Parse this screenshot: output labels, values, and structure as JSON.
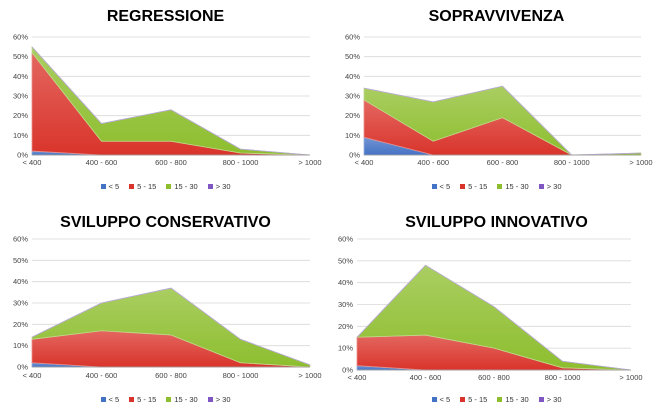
{
  "chart_data": [
    {
      "type": "area",
      "title": "REGRESSIONE",
      "categories": [
        "< 400",
        "400 - 600",
        "600 - 800",
        "800 - 1000",
        "> 1000"
      ],
      "ylim": [
        0,
        60
      ],
      "yticks": [
        "0%",
        "10%",
        "20%",
        "30%",
        "40%",
        "50%",
        "60%"
      ],
      "stacked": true,
      "series": [
        {
          "name": "< 5",
          "color": "#4472C4",
          "values": [
            2,
            0,
            0,
            0,
            0
          ]
        },
        {
          "name": "5 - 15",
          "color": "#D9342B",
          "values": [
            50,
            7,
            7,
            1,
            0
          ]
        },
        {
          "name": "15 - 30",
          "color": "#8DBE2E",
          "values": [
            3,
            9,
            16,
            2,
            0
          ]
        },
        {
          "name": "> 30",
          "color": "#7E57C2",
          "values": [
            0,
            0,
            0,
            0,
            0
          ]
        }
      ]
    },
    {
      "type": "area",
      "title": "SOPRAVVIVENZA",
      "categories": [
        "< 400",
        "400 - 600",
        "600 - 800",
        "800 - 1000",
        "> 1000"
      ],
      "ylim": [
        0,
        60
      ],
      "yticks": [
        "0%",
        "10%",
        "20%",
        "30%",
        "40%",
        "50%",
        "60%"
      ],
      "stacked": true,
      "series": [
        {
          "name": "< 5",
          "color": "#4472C4",
          "values": [
            9,
            0,
            0,
            0,
            0
          ]
        },
        {
          "name": "5 - 15",
          "color": "#D9342B",
          "values": [
            19,
            7,
            19,
            0,
            0
          ]
        },
        {
          "name": "15 - 30",
          "color": "#8DBE2E",
          "values": [
            6,
            20,
            16,
            0,
            1
          ]
        },
        {
          "name": "> 30",
          "color": "#7E57C2",
          "values": [
            0,
            0,
            0,
            0,
            0
          ]
        }
      ]
    },
    {
      "type": "area",
      "title": "SVILUPPO CONSERVATIVO",
      "categories": [
        "< 400",
        "400 - 600",
        "600 - 800",
        "800 - 1000",
        "> 1000"
      ],
      "ylim": [
        0,
        60
      ],
      "yticks": [
        "0%",
        "10%",
        "20%",
        "30%",
        "40%",
        "50%",
        "60%"
      ],
      "stacked": true,
      "series": [
        {
          "name": "< 5",
          "color": "#4472C4",
          "values": [
            2,
            0,
            0,
            0,
            0
          ]
        },
        {
          "name": "5 - 15",
          "color": "#D9342B",
          "values": [
            11,
            17,
            15,
            2,
            0
          ]
        },
        {
          "name": "15 - 30",
          "color": "#8DBE2E",
          "values": [
            1,
            13,
            22,
            11,
            1
          ]
        },
        {
          "name": "> 30",
          "color": "#7E57C2",
          "values": [
            0,
            0,
            0,
            0,
            0
          ]
        }
      ]
    },
    {
      "type": "area",
      "title": "SVILUPPO INNOVATIVO",
      "categories": [
        "< 400",
        "400 - 600",
        "600 - 800",
        "800 - 1000",
        "> 1000"
      ],
      "ylim": [
        0,
        60
      ],
      "yticks": [
        "0%",
        "10%",
        "20%",
        "30%",
        "40%",
        "50%",
        "60%"
      ],
      "stacked": true,
      "series": [
        {
          "name": "< 5",
          "color": "#4472C4",
          "values": [
            2,
            0,
            0,
            0,
            0
          ]
        },
        {
          "name": "5 - 15",
          "color": "#D9342B",
          "values": [
            13,
            16,
            10,
            1,
            0
          ]
        },
        {
          "name": "15 - 30",
          "color": "#8DBE2E",
          "values": [
            0,
            32,
            19,
            3,
            0
          ]
        },
        {
          "name": "> 30",
          "color": "#7E57C2",
          "values": [
            0,
            0,
            0,
            0,
            0
          ]
        }
      ]
    }
  ]
}
